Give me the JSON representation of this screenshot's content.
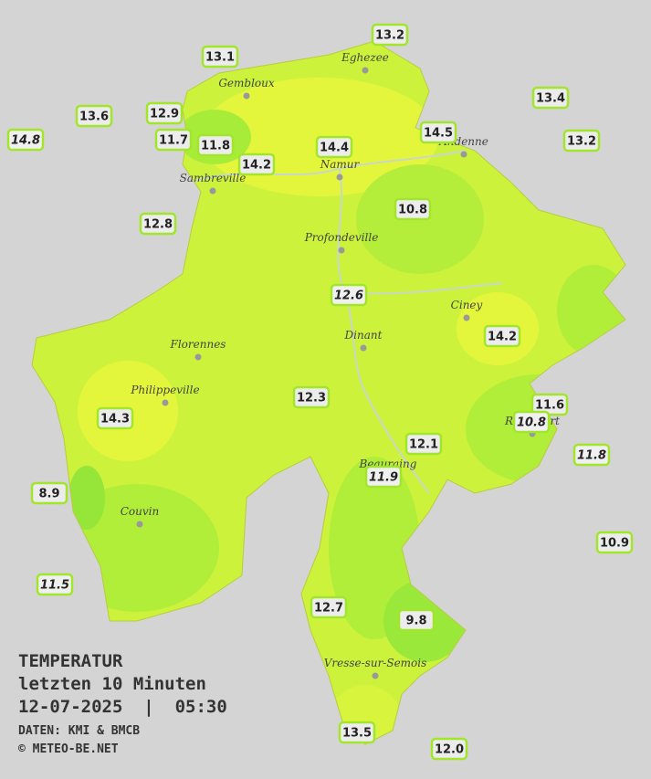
{
  "title": {
    "heading": "TEMPERATUR",
    "period": "letzten 10 Minuten",
    "datetime": "12-07-2025  |  05:30",
    "source": "DATEN: KMI & BMCB",
    "copyright": "© METEO-BE.NET"
  },
  "cities": [
    "Eghezee",
    "Gembloux",
    "Andenne",
    "Namur",
    "Sambreville",
    "Profondeville",
    "Ciney",
    "Dinant",
    "Florennes",
    "Philippeville",
    "Rochefort",
    "Beauraing",
    "Couvin",
    "Vresse-sur-Semois"
  ],
  "stations": [
    {
      "label": "13.2",
      "italic": false
    },
    {
      "label": "13.1",
      "italic": false
    },
    {
      "label": "13.4",
      "italic": false
    },
    {
      "label": "13.6",
      "italic": false
    },
    {
      "label": "12.9",
      "italic": false
    },
    {
      "label": "14.8",
      "italic": true
    },
    {
      "label": "11.7",
      "italic": false
    },
    {
      "label": "11.8",
      "italic": false
    },
    {
      "label": "14.5",
      "italic": false
    },
    {
      "label": "13.2",
      "italic": false
    },
    {
      "label": "14.4",
      "italic": false
    },
    {
      "label": "14.2",
      "italic": false
    },
    {
      "label": "10.8",
      "italic": false
    },
    {
      "label": "12.8",
      "italic": false
    },
    {
      "label": "12.6",
      "italic": true
    },
    {
      "label": "14.2",
      "italic": false
    },
    {
      "label": "12.3",
      "italic": false
    },
    {
      "label": "14.3",
      "italic": false
    },
    {
      "label": "11.6",
      "italic": false
    },
    {
      "label": "10.8",
      "italic": true
    },
    {
      "label": "12.1",
      "italic": false
    },
    {
      "label": "11.8",
      "italic": true
    },
    {
      "label": "11.9",
      "italic": true
    },
    {
      "label": "8.9",
      "italic": false
    },
    {
      "label": "10.9",
      "italic": false
    },
    {
      "label": "11.5",
      "italic": true
    },
    {
      "label": "12.7",
      "italic": false
    },
    {
      "label": "9.8",
      "italic": false
    },
    {
      "label": "13.5",
      "italic": false
    },
    {
      "label": "12.0",
      "italic": false
    }
  ]
}
